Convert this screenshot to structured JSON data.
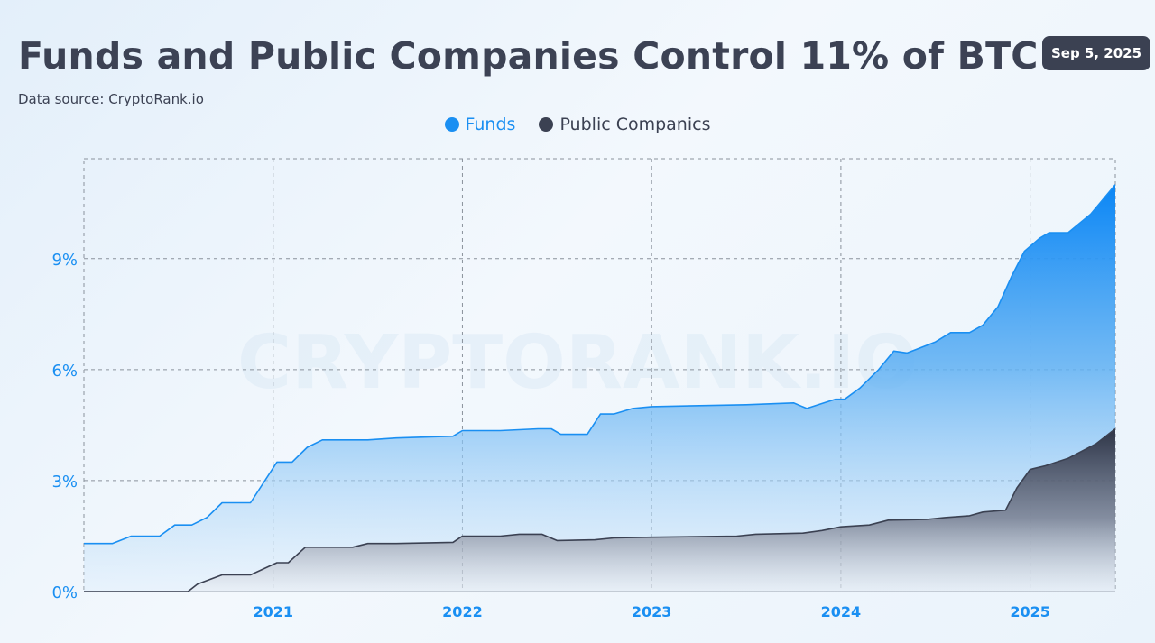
{
  "header": {
    "title": "Funds and Public Companies Control 11% of BTC",
    "source": "Data source: CryptoRank.io",
    "date": "Sep 5, 2025"
  },
  "watermark": "CRYPTORANK.IO",
  "colors": {
    "funds": "#1a8ff2",
    "public_companies": "#3b4152",
    "tick_label": "#1a8ff2",
    "grid": "#8a929c"
  },
  "chart_data": {
    "type": "area",
    "title": "Funds and Public Companies Control 11% of BTC",
    "xlabel": "",
    "ylabel": "",
    "xlim": [
      2020.0,
      2025.45
    ],
    "ylim": [
      0,
      11.7
    ],
    "y_ticks": [
      0,
      3,
      6,
      9
    ],
    "y_tick_labels": [
      "0%",
      "3%",
      "6%",
      "9%"
    ],
    "x_ticks": [
      2021,
      2022,
      2023,
      2024,
      2025
    ],
    "x_tick_labels": [
      "2021",
      "2022",
      "2023",
      "2024",
      "2025"
    ],
    "grid": true,
    "legend_position": "top-center",
    "series": [
      {
        "name": "Funds",
        "points": [
          [
            2020.0,
            1.3
          ],
          [
            2020.15,
            1.3
          ],
          [
            2020.25,
            1.5
          ],
          [
            2020.4,
            1.5
          ],
          [
            2020.48,
            1.8
          ],
          [
            2020.57,
            1.8
          ],
          [
            2020.65,
            2.0
          ],
          [
            2020.73,
            2.4
          ],
          [
            2020.88,
            2.4
          ],
          [
            2021.02,
            3.5
          ],
          [
            2021.1,
            3.5
          ],
          [
            2021.18,
            3.9
          ],
          [
            2021.26,
            4.1
          ],
          [
            2021.5,
            4.1
          ],
          [
            2021.65,
            4.15
          ],
          [
            2021.95,
            4.2
          ],
          [
            2022.0,
            4.35
          ],
          [
            2022.2,
            4.35
          ],
          [
            2022.4,
            4.4
          ],
          [
            2022.47,
            4.4
          ],
          [
            2022.52,
            4.25
          ],
          [
            2022.66,
            4.25
          ],
          [
            2022.73,
            4.8
          ],
          [
            2022.8,
            4.8
          ],
          [
            2022.9,
            4.95
          ],
          [
            2023.0,
            5.0
          ],
          [
            2023.5,
            5.05
          ],
          [
            2023.75,
            5.1
          ],
          [
            2023.82,
            4.95
          ],
          [
            2023.97,
            5.2
          ],
          [
            2024.02,
            5.2
          ],
          [
            2024.1,
            5.5
          ],
          [
            2024.2,
            6.0
          ],
          [
            2024.28,
            6.5
          ],
          [
            2024.35,
            6.45
          ],
          [
            2024.45,
            6.65
          ],
          [
            2024.5,
            6.75
          ],
          [
            2024.58,
            7.0
          ],
          [
            2024.68,
            7.0
          ],
          [
            2024.75,
            7.2
          ],
          [
            2024.83,
            7.7
          ],
          [
            2024.9,
            8.5
          ],
          [
            2024.97,
            9.2
          ],
          [
            2025.05,
            9.55
          ],
          [
            2025.1,
            9.7
          ],
          [
            2025.2,
            9.7
          ],
          [
            2025.32,
            10.2
          ],
          [
            2025.45,
            11.0
          ]
        ]
      },
      {
        "name": "Public Companics",
        "points": [
          [
            2020.0,
            0.0
          ],
          [
            2020.55,
            0.0
          ],
          [
            2020.6,
            0.2
          ],
          [
            2020.73,
            0.45
          ],
          [
            2020.88,
            0.45
          ],
          [
            2021.02,
            0.78
          ],
          [
            2021.08,
            0.78
          ],
          [
            2021.17,
            1.2
          ],
          [
            2021.42,
            1.2
          ],
          [
            2021.5,
            1.3
          ],
          [
            2021.65,
            1.3
          ],
          [
            2021.95,
            1.33
          ],
          [
            2022.0,
            1.5
          ],
          [
            2022.2,
            1.5
          ],
          [
            2022.3,
            1.55
          ],
          [
            2022.42,
            1.55
          ],
          [
            2022.5,
            1.38
          ],
          [
            2022.7,
            1.4
          ],
          [
            2022.8,
            1.45
          ],
          [
            2023.0,
            1.47
          ],
          [
            2023.45,
            1.5
          ],
          [
            2023.55,
            1.55
          ],
          [
            2023.8,
            1.58
          ],
          [
            2023.9,
            1.65
          ],
          [
            2024.0,
            1.75
          ],
          [
            2024.15,
            1.8
          ],
          [
            2024.25,
            1.93
          ],
          [
            2024.45,
            1.95
          ],
          [
            2024.55,
            2.0
          ],
          [
            2024.68,
            2.05
          ],
          [
            2024.75,
            2.15
          ],
          [
            2024.87,
            2.2
          ],
          [
            2024.93,
            2.8
          ],
          [
            2025.0,
            3.3
          ],
          [
            2025.08,
            3.4
          ],
          [
            2025.2,
            3.6
          ],
          [
            2025.35,
            4.0
          ],
          [
            2025.45,
            4.4
          ]
        ]
      }
    ]
  }
}
